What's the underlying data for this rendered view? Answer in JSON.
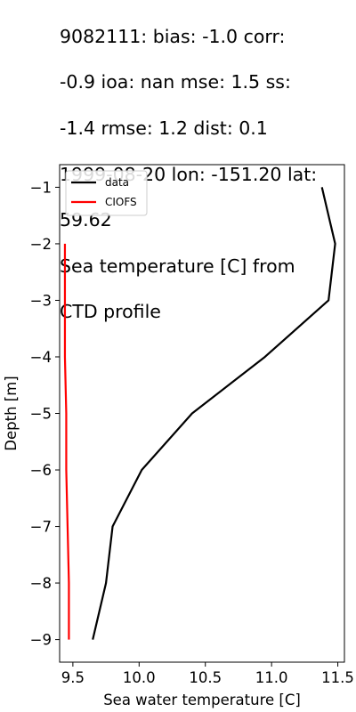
{
  "title_lines": [
    "9082111: bias: -1.0  corr:",
    "-0.9  ioa: nan  mse: 1.5  ss:",
    "-1.4  rmse: 1.2  dist: 0.1",
    "1999-08-20 lon: -151.20 lat:",
    "59.62",
    "Sea temperature [C] from",
    "CTD profile"
  ],
  "chart_data": {
    "type": "line",
    "xlabel": "Sea water temperature [C]",
    "ylabel": "Depth [m]",
    "xlim": [
      9.4,
      11.55
    ],
    "ylim": [
      -9.4,
      -0.6
    ],
    "x_ticks": [
      9.5,
      10.0,
      10.5,
      11.0,
      11.5
    ],
    "x_tick_labels": [
      "9.5",
      "10.0",
      "10.5",
      "11.0",
      "11.5"
    ],
    "y_ticks": [
      -1,
      -2,
      -3,
      -4,
      -5,
      -6,
      -7,
      -8,
      -9
    ],
    "y_tick_labels": [
      "−1",
      "−2",
      "−3",
      "−4",
      "−5",
      "−6",
      "−7",
      "−8",
      "−9"
    ],
    "grid": false,
    "legend_position": "upper-left",
    "series": [
      {
        "name": "data",
        "color": "#000000",
        "points": [
          [
            11.38,
            -1
          ],
          [
            11.48,
            -2
          ],
          [
            11.43,
            -3
          ],
          [
            10.95,
            -4
          ],
          [
            10.4,
            -5
          ],
          [
            10.02,
            -6
          ],
          [
            9.8,
            -7
          ],
          [
            9.75,
            -8
          ],
          [
            9.65,
            -9
          ]
        ]
      },
      {
        "name": "CIOFS",
        "color": "#ff0000",
        "points": [
          [
            9.44,
            -2
          ],
          [
            9.44,
            -3
          ],
          [
            9.44,
            -4
          ],
          [
            9.45,
            -5
          ],
          [
            9.45,
            -6
          ],
          [
            9.46,
            -7
          ],
          [
            9.47,
            -8
          ],
          [
            9.47,
            -9
          ]
        ]
      }
    ]
  }
}
